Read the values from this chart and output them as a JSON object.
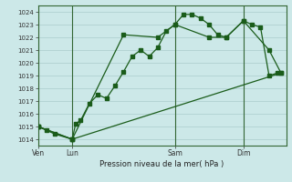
{
  "bg_color": "#cce8e8",
  "grid_color": "#aacccc",
  "line_color": "#1a5c1a",
  "title": "Pression niveau de la mer( hPa )",
  "ylim": [
    1013.5,
    1024.5
  ],
  "xtick_labels": [
    "Ven",
    "Lun",
    "Sam",
    "Dim"
  ],
  "xtick_positions": [
    0,
    2,
    8,
    12
  ],
  "xlim": [
    0,
    14.5
  ],
  "series1_x": [
    0,
    0.5,
    1,
    2,
    2.2,
    2.5,
    3,
    3.5,
    4,
    4.5,
    5,
    5.5,
    6,
    6.5,
    7,
    7.5,
    8,
    8.5,
    9,
    9.5,
    10,
    10.5,
    11,
    12,
    12.5,
    13,
    13.5,
    14
  ],
  "series1_y": [
    1015.0,
    1014.7,
    1014.4,
    1014.0,
    1015.2,
    1015.5,
    1016.8,
    1017.5,
    1017.2,
    1018.2,
    1019.3,
    1020.5,
    1021.0,
    1020.5,
    1021.2,
    1022.5,
    1023.0,
    1023.8,
    1023.8,
    1023.5,
    1023.0,
    1022.2,
    1022.0,
    1023.3,
    1023.0,
    1022.8,
    1019.0,
    1019.2
  ],
  "series2_x": [
    0,
    2,
    5,
    7,
    8,
    10,
    11,
    12,
    13.5,
    14.2
  ],
  "series2_y": [
    1015.0,
    1014.0,
    1022.2,
    1022.0,
    1023.0,
    1022.0,
    1022.0,
    1023.3,
    1021.0,
    1019.2
  ],
  "series3_x": [
    0,
    2,
    14.2
  ],
  "series3_y": [
    1015.0,
    1014.0,
    1019.2
  ]
}
